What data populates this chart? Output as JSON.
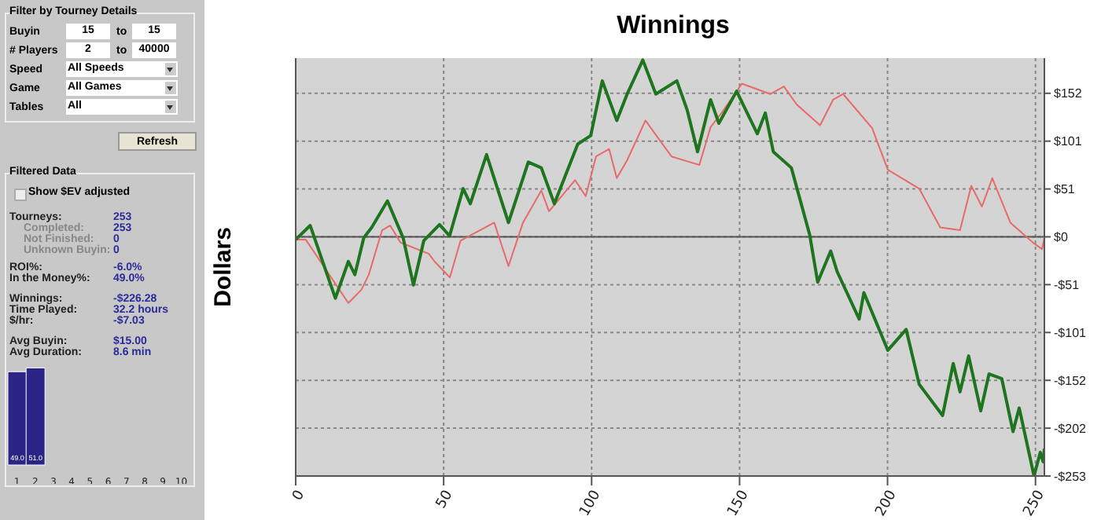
{
  "chart_data": [
    {
      "type": "other",
      "title": "Filter by Tourney Details",
      "annotations": [
        "Buyin",
        "15",
        "to",
        "15",
        "# Players",
        "2",
        "to",
        "40000",
        "Speed",
        "All Speeds",
        "Game",
        "All Games",
        "Tables",
        "All",
        "Refresh"
      ]
    },
    {
      "type": "other",
      "title": "Filtered Data",
      "annotations": [
        "Show $EV adjusted",
        "Tourneys:",
        "253",
        "Completed:",
        "253",
        "Not Finished:",
        "0",
        "Unknown Buyin:",
        "0",
        "ROI%:",
        "-6.0%",
        "In the Money%:",
        "49.0%",
        "Winnings:",
        "-$226.28",
        "Time Played:",
        "32.2 hours",
        "$/hr:",
        "-$7.03",
        "Avg Buyin:",
        "$15.00",
        "Avg Duration:",
        "8.6 min"
      ]
    },
    {
      "type": "bar",
      "categories": [
        "1",
        "2",
        "3",
        "4",
        "5",
        "6",
        "7",
        "8",
        "9",
        "10"
      ],
      "values": [
        49.0,
        51.0,
        null,
        null,
        null,
        null,
        null,
        null,
        null,
        null
      ],
      "color": "#2a2585",
      "value_labels": [
        "49.0",
        "51.0",
        null,
        null,
        null,
        null,
        null,
        null,
        null,
        null
      ]
    },
    {
      "type": "line",
      "title": "Winnings",
      "ylabel": "Dollars",
      "xlim": [
        0,
        253
      ],
      "xticks": [
        0,
        50,
        100,
        150,
        200,
        250
      ],
      "ylim": [
        -253,
        189
      ],
      "yticks": [
        {
          "value": -253,
          "label": "-$253"
        },
        {
          "value": -202.4,
          "label": "-$202"
        },
        {
          "value": -151.8,
          "label": "-$152"
        },
        {
          "value": -101.2,
          "label": "-$101"
        },
        {
          "value": -50.6,
          "label": "-$51"
        },
        {
          "value": 0,
          "label": "$0"
        },
        {
          "value": 50.6,
          "label": "$51"
        },
        {
          "value": 101.2,
          "label": "$101"
        },
        {
          "value": 151.8,
          "label": "$152"
        }
      ],
      "grid": true,
      "legend": false,
      "marker": "none",
      "line_style": "solid",
      "ref_lines": [
        {
          "axis": "y",
          "value": 0,
          "color": "#555555"
        }
      ],
      "series": [
        {
          "color": "#e86a6a",
          "x": [
            0,
            3.4,
            17.8,
            22.2,
            24.7,
            29.2,
            31.9,
            35.4,
            45,
            46.9,
            52.1,
            55.7,
            67.1,
            71.9,
            76.8,
            83,
            85.6,
            94.4,
            98,
            101.5,
            105.9,
            108.5,
            112,
            118.2,
            122.6,
            127,
            133.2,
            136.4,
            140.2,
            143.9,
            150.8,
            160.4,
            165,
            169.3,
            177.2,
            181.6,
            185,
            194.8,
            200.1,
            210.7,
            217.8,
            224.5,
            228.3,
            231.9,
            235.4,
            241.5,
            249.5,
            252.2,
            253
          ],
          "values": [
            -3,
            -3,
            -70,
            -56,
            -40,
            7,
            12,
            -6,
            -18,
            -26,
            -43,
            -4,
            15,
            -31,
            15,
            49,
            27,
            60,
            43,
            85,
            93,
            62,
            81,
            123,
            104,
            85,
            79,
            76,
            116,
            131,
            162,
            151,
            159,
            140,
            118,
            145,
            151,
            115,
            71,
            51,
            10,
            7,
            54,
            32,
            62,
            15,
            -7,
            -13,
            -1
          ]
        },
        {
          "color": "#1f741f",
          "x": [
            0,
            4.9,
            13.4,
            17.8,
            20,
            23,
            25.7,
            31,
            36.3,
            39.8,
            43.3,
            48.6,
            52,
            56.6,
            59,
            64.5,
            71.9,
            78.6,
            83,
            87.4,
            95.3,
            99.7,
            103.6,
            108.5,
            112,
            117.3,
            121.7,
            128.8,
            132.3,
            135.8,
            140.2,
            143,
            149,
            156,
            158.7,
            161.4,
            167.5,
            173.7,
            176.4,
            180.8,
            183,
            190.4,
            192,
            200.1,
            206.3,
            210.7,
            218.6,
            222.2,
            224.5,
            227.4,
            231.5,
            234.3,
            238.6,
            242.4,
            244.5,
            249.5,
            251.6,
            252.6,
            253
          ],
          "values": [
            -3,
            12,
            -65,
            -26,
            -40,
            -1,
            10,
            38,
            -1,
            -51,
            -4,
            13,
            1,
            51,
            35,
            87,
            15,
            79,
            73,
            35,
            98,
            107,
            165,
            123,
            151,
            187,
            151,
            165,
            134,
            90,
            145,
            120,
            154,
            109,
            131,
            90,
            73,
            2,
            -48,
            -15,
            -37,
            -87,
            -59,
            -120,
            -98,
            -156,
            -189,
            -134,
            -164,
            -126,
            -184,
            -145,
            -150,
            -206,
            -181,
            -253,
            -228,
            -238,
            -224
          ]
        }
      ]
    }
  ]
}
